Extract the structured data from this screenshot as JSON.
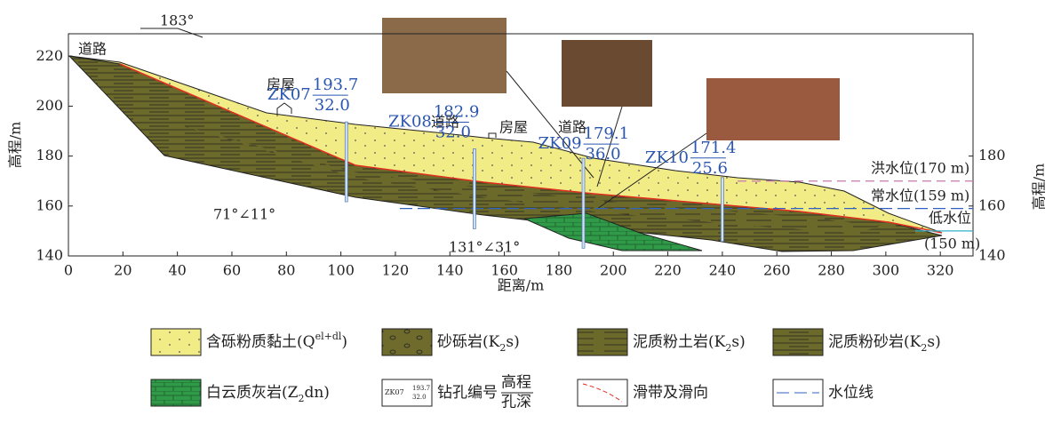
{
  "axes": {
    "x_title": "距离/m",
    "y_title": "高程/m",
    "y2_title": "高程/m",
    "xlim": [
      0,
      332
    ],
    "ylim": [
      140,
      229
    ],
    "xticks": [
      0,
      20,
      40,
      60,
      80,
      100,
      120,
      140,
      160,
      180,
      200,
      220,
      240,
      260,
      280,
      300,
      320
    ],
    "yticks": [
      140,
      160,
      180,
      200,
      220
    ],
    "y2ticks": [
      140,
      160,
      180
    ]
  },
  "direction": "183°",
  "annotations": [
    "道路",
    "房屋",
    "道路",
    "房屋",
    "道路",
    "71°∠11°",
    "131°∠31°"
  ],
  "boreholes": [
    {
      "id": "ZK07",
      "x": 102,
      "elevation": 193.7,
      "depth": {
        "value": 32,
        "label": "32.0"
      }
    },
    {
      "id": "ZK08",
      "x": 149,
      "elevation": 182.9,
      "depth": {
        "value": 32,
        "label": "32.0"
      }
    },
    {
      "id": "ZK09",
      "x": 189,
      "elevation": 179.1,
      "depth": {
        "value": 36,
        "label": "36.0"
      }
    },
    {
      "id": "ZK10",
      "x": 240,
      "elevation": 171.4,
      "depth": {
        "value": 25.6,
        "label": "25.6"
      }
    }
  ],
  "water_levels": [
    {
      "name": "洪水位",
      "label": "(170 m)",
      "value": 170,
      "color": "#c878b0"
    },
    {
      "name": "常水位",
      "label": "(159 m)",
      "value": 159,
      "color": "#3060c0"
    },
    {
      "name": "低水位",
      "label": "(150 m)",
      "value": 150,
      "color": "#30b0c8"
    }
  ],
  "legend": [
    {
      "label": [
        {
          "t": "含砾粉质黏土(Q"
        },
        {
          "sup": "el+dl"
        },
        {
          "t": ")"
        }
      ]
    },
    {
      "label": [
        {
          "t": "砂砾岩(K"
        },
        {
          "sub": "2"
        },
        {
          "t": "s)"
        }
      ]
    },
    {
      "label": [
        {
          "t": "泥质粉土岩(K"
        },
        {
          "sub": "2"
        },
        {
          "t": "s)"
        }
      ]
    },
    {
      "label": [
        {
          "t": "泥质粉砂岩(K"
        },
        {
          "sub": "2"
        },
        {
          "t": "s)"
        }
      ]
    },
    {
      "label": [
        {
          "t": "白云质灰岩(Z"
        },
        {
          "sub": "2"
        },
        {
          "t": "dn)"
        }
      ]
    },
    {
      "label": [
        {
          "t": "钻孔编号"
        }
      ],
      "sample": {
        "id": "ZK07",
        "top": "193.7",
        "bottom": "32.0"
      },
      "fraction": {
        "top": "高程",
        "bottom": "孔深"
      }
    },
    {
      "label": [
        {
          "t": "滑带及滑向"
        }
      ]
    },
    {
      "label": [
        {
          "t": "水位线"
        }
      ]
    }
  ]
}
